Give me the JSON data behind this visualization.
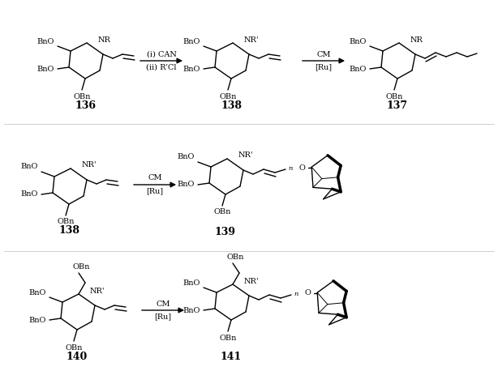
{
  "background": "#ffffff",
  "line_color": "#000000",
  "text_color": "#000000",
  "arrow1_label_top": "(i) CAN",
  "arrow1_label_bot": "(ii) R’Cl",
  "arrow2_label_top": "CM",
  "arrow2_label_bot": "[Ru]",
  "arrow3_label_top": "CM",
  "arrow3_label_bot": "[Ru]",
  "arrow4_label_top": "CM",
  "arrow4_label_bot": "[Ru]"
}
